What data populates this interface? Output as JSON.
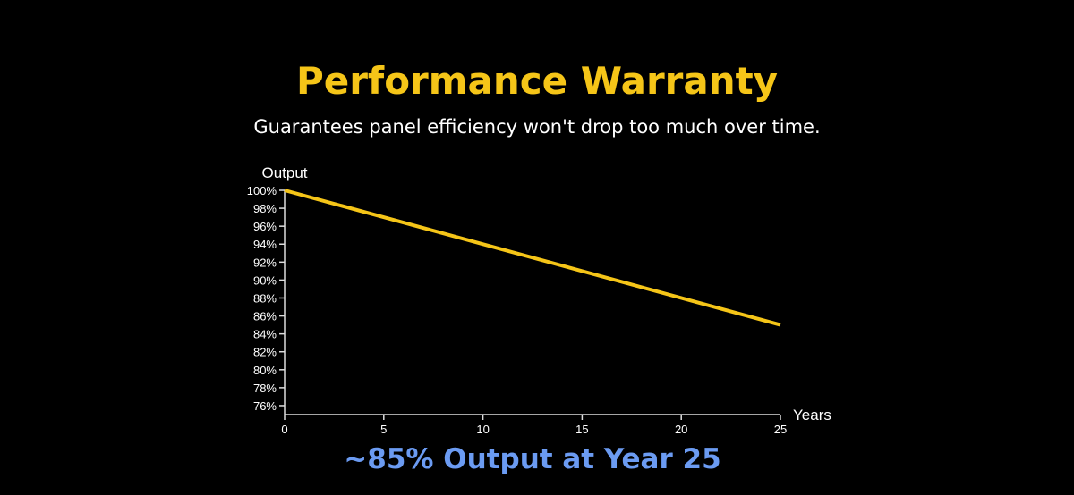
{
  "chart_data": {
    "type": "line",
    "title": "Performance Warranty",
    "subtitle": "Guarantees panel efficiency won't drop too much over time.",
    "xlabel": "Years",
    "ylabel": "Output",
    "xlim": [
      0,
      25
    ],
    "ylim": [
      75,
      100
    ],
    "xticks": [
      0,
      5,
      10,
      15,
      20,
      25
    ],
    "yticks": [
      100,
      98,
      96,
      94,
      92,
      90,
      88,
      86,
      84,
      82,
      80,
      78,
      76
    ],
    "series": [
      {
        "name": "Output",
        "x": [
          0,
          25
        ],
        "y": [
          100,
          85
        ],
        "color": "#f5c518"
      }
    ],
    "annotation": "~85% Output at Year 25",
    "annotation_color": "#6b9bf2",
    "grid": false
  }
}
